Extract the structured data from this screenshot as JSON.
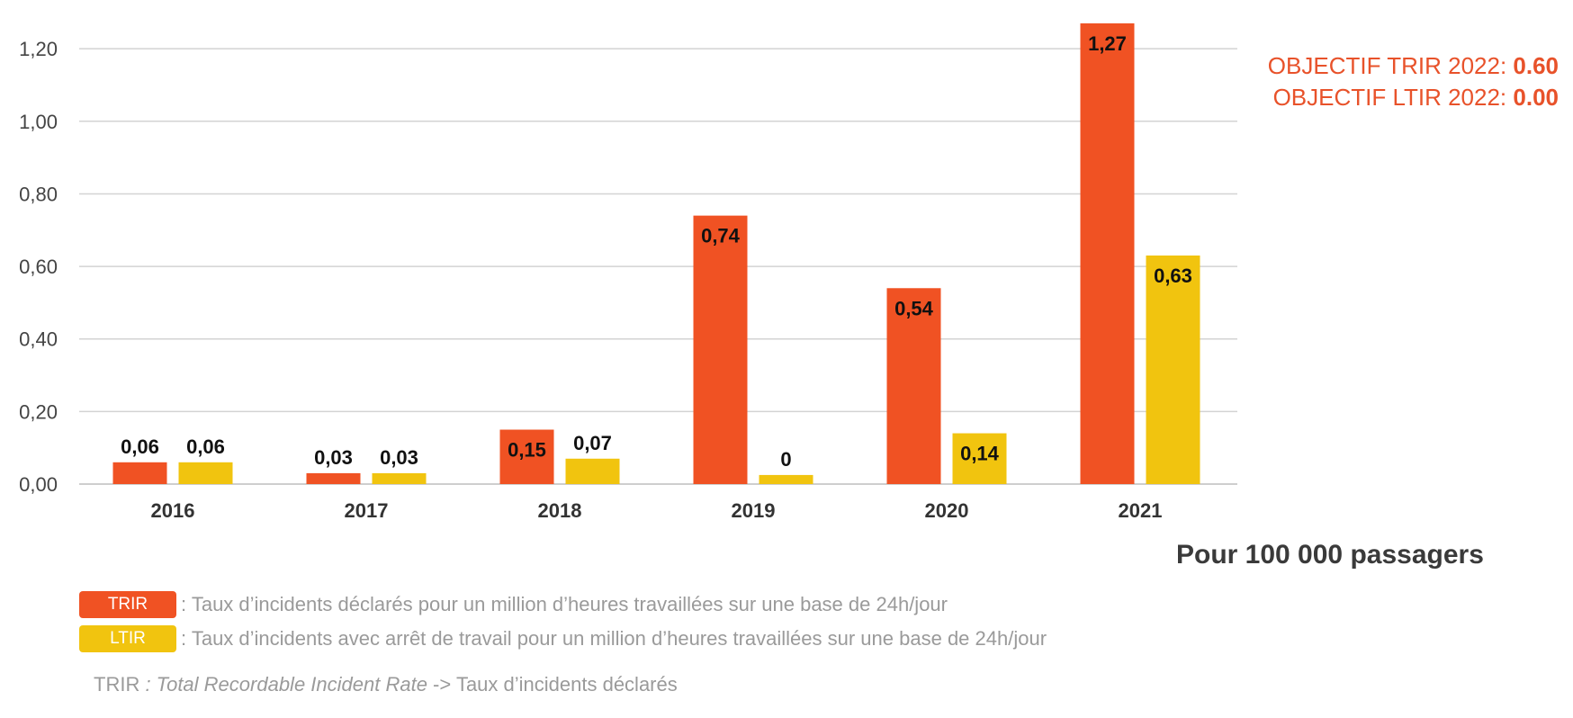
{
  "chart_data": {
    "type": "bar",
    "categories": [
      "2016",
      "2017",
      "2018",
      "2019",
      "2020",
      "2021"
    ],
    "series": [
      {
        "name": "TRIR",
        "color": "#f05223",
        "values": [
          0.06,
          0.03,
          0.15,
          0.74,
          0.54,
          1.27
        ],
        "labels": [
          "0,06",
          "0,03",
          "0,15",
          "0,74",
          "0,54",
          "1,27"
        ]
      },
      {
        "name": "LTIR",
        "color": "#f1c40f",
        "values": [
          0.06,
          0.03,
          0.07,
          0.025,
          0.14,
          0.63
        ],
        "labels": [
          "0,06",
          "0,03",
          "0,07",
          "0",
          "0,14",
          "0,63"
        ]
      }
    ],
    "ylim": [
      0,
      1.25
    ],
    "yticks": [
      0,
      0.2,
      0.4,
      0.6,
      0.8,
      1.0,
      1.2
    ],
    "ytick_labels": [
      "0,00",
      "0,20",
      "0,40",
      "0,60",
      "0,80",
      "1,00",
      "1,20"
    ],
    "grid": true,
    "title": "",
    "xlabel": "",
    "ylabel": ""
  },
  "objectives": {
    "trir_label": "OBJECTIF TRIR 2022: ",
    "trir_value": "0.60",
    "ltir_label": "OBJECTIF LTIR 2022: ",
    "ltir_value": "0.00"
  },
  "subtitle": "Pour 100 000 passagers",
  "legend": {
    "trir_badge": "TRIR",
    "trir_color": "#f05223",
    "trir_text": ": Taux d’incidents déclarés pour un million d’heures travaillées sur une base de 24h/jour",
    "ltir_badge": "LTIR",
    "ltir_color": "#f1c40f",
    "ltir_text": ": Taux d’incidents avec arrêt de travail pour un million d’heures travaillées sur une base de 24h/jour"
  },
  "footnote": {
    "abbr": "TRIR",
    "italic": " : Total Recordable Incident Rate",
    "rest": " -> Taux d’incidents déclarés"
  }
}
